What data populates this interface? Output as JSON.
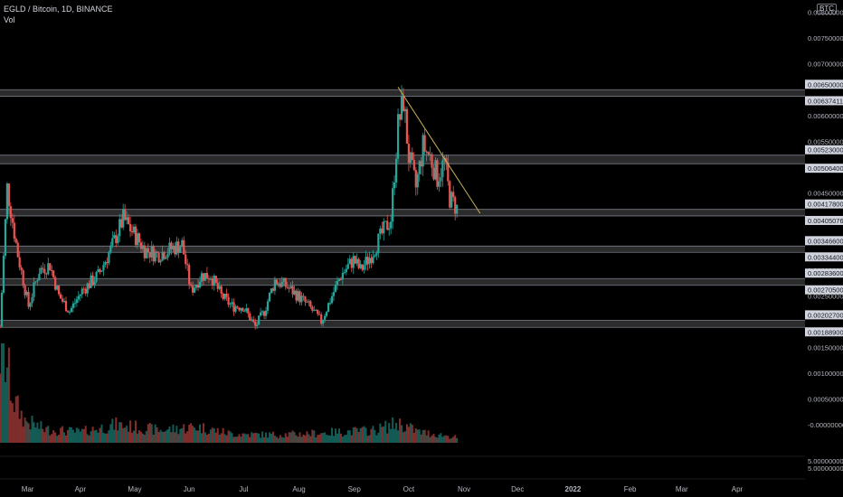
{
  "legend": {
    "symbol": "EGLD / Bitcoin, 1D, BINANCE",
    "volume": "Vol"
  },
  "currency": "BTC",
  "colors": {
    "up": "#26a69a",
    "down": "#ef5350",
    "zone": "#3a3a3a",
    "zone_line": "#787b86",
    "trend": "#c9b458",
    "grid": "#0f0f0f"
  },
  "chart_data": {
    "type": "candlestick",
    "price_axis": {
      "ylim": [
        0.0,
        0.0081
      ],
      "ticks": [
        "0.00800000",
        "0.00750000",
        "0.00700000",
        "0.00600000",
        "0.00550000",
        "0.00450000",
        "0.00300000",
        "0.00250000",
        "0.00150000",
        "0.00100000",
        "0.00050000",
        "-0.00000000"
      ],
      "tick_values": [
        0.008,
        0.0075,
        0.007,
        0.006,
        0.0055,
        0.0045,
        0.003,
        0.0025,
        0.0015,
        0.001,
        0.0005,
        0.0
      ]
    },
    "volume_axis": {
      "ticks": [
        "5.00000000",
        "5.00000000"
      ]
    },
    "x_axis": {
      "labels": [
        "Mar",
        "Apr",
        "May",
        "Jun",
        "Jul",
        "Aug",
        "Sep",
        "Oct",
        "Nov",
        "Dec",
        "2022",
        "Feb",
        "Mar",
        "Apr"
      ],
      "label_days": [
        31,
        90,
        151,
        212,
        273,
        335,
        397,
        458,
        520,
        580,
        642,
        706,
        764,
        826
      ],
      "domain_days": [
        0,
        900
      ]
    },
    "zones": [
      {
        "top": 0.0065,
        "bottom": 0.00637411,
        "top_label": "0.00650000",
        "bottom_label": "0.00637411"
      },
      {
        "top": 0.00523,
        "bottom": 0.005064,
        "top_label": "0.00523000",
        "bottom_label": "0.00506400"
      },
      {
        "top": 0.004178,
        "bottom": 0.00405076,
        "top_label": "0.00417800",
        "bottom_label": "0.00405076"
      },
      {
        "top": 0.003466,
        "bottom": 0.003344,
        "top_label": "0.00346600",
        "bottom_label": "0.00334400"
      },
      {
        "top": 0.002836,
        "bottom": 0.002705,
        "top_label": "0.00283600",
        "bottom_label": "0.00270500"
      },
      {
        "top": 0.002027,
        "bottom": 0.001889,
        "top_label": "0.00202700",
        "bottom_label": "0.00188900"
      }
    ],
    "trendline": {
      "from": [
        446,
        0.00655
      ],
      "to": [
        538,
        0.0041
      ]
    },
    "key_closes": [
      [
        0,
        0.0019
      ],
      [
        8,
        0.0046
      ],
      [
        20,
        0.0033
      ],
      [
        32,
        0.0023
      ],
      [
        44,
        0.003
      ],
      [
        56,
        0.0031
      ],
      [
        66,
        0.0025
      ],
      [
        78,
        0.0022
      ],
      [
        92,
        0.0026
      ],
      [
        110,
        0.0029
      ],
      [
        124,
        0.0034
      ],
      [
        138,
        0.004
      ],
      [
        150,
        0.0037
      ],
      [
        162,
        0.0034
      ],
      [
        176,
        0.0033
      ],
      [
        190,
        0.0034
      ],
      [
        204,
        0.0035
      ],
      [
        214,
        0.0026
      ],
      [
        226,
        0.0029
      ],
      [
        236,
        0.0029
      ],
      [
        248,
        0.0025
      ],
      [
        260,
        0.0023
      ],
      [
        272,
        0.0023
      ],
      [
        286,
        0.0019
      ],
      [
        296,
        0.0022
      ],
      [
        308,
        0.0028
      ],
      [
        320,
        0.0027
      ],
      [
        334,
        0.0025
      ],
      [
        346,
        0.0023
      ],
      [
        360,
        0.002
      ],
      [
        372,
        0.0025
      ],
      [
        382,
        0.0029
      ],
      [
        396,
        0.0032
      ],
      [
        404,
        0.003
      ],
      [
        416,
        0.0033
      ],
      [
        428,
        0.0037
      ],
      [
        438,
        0.004
      ],
      [
        446,
        0.0058
      ],
      [
        452,
        0.0063
      ],
      [
        458,
        0.0052
      ],
      [
        466,
        0.0046
      ],
      [
        474,
        0.0054
      ],
      [
        482,
        0.0052
      ],
      [
        490,
        0.0048
      ],
      [
        498,
        0.0051
      ],
      [
        504,
        0.0044
      ],
      [
        512,
        0.0042
      ]
    ],
    "key_volumes": [
      [
        0,
        1.0
      ],
      [
        8,
        0.85
      ],
      [
        16,
        0.45
      ],
      [
        28,
        0.25
      ],
      [
        50,
        0.15
      ],
      [
        90,
        0.12
      ],
      [
        130,
        0.2
      ],
      [
        180,
        0.14
      ],
      [
        220,
        0.18
      ],
      [
        260,
        0.1
      ],
      [
        300,
        0.09
      ],
      [
        340,
        0.1
      ],
      [
        380,
        0.12
      ],
      [
        420,
        0.14
      ],
      [
        446,
        0.22
      ],
      [
        470,
        0.12
      ],
      [
        500,
        0.08
      ],
      [
        512,
        0.06
      ]
    ]
  }
}
